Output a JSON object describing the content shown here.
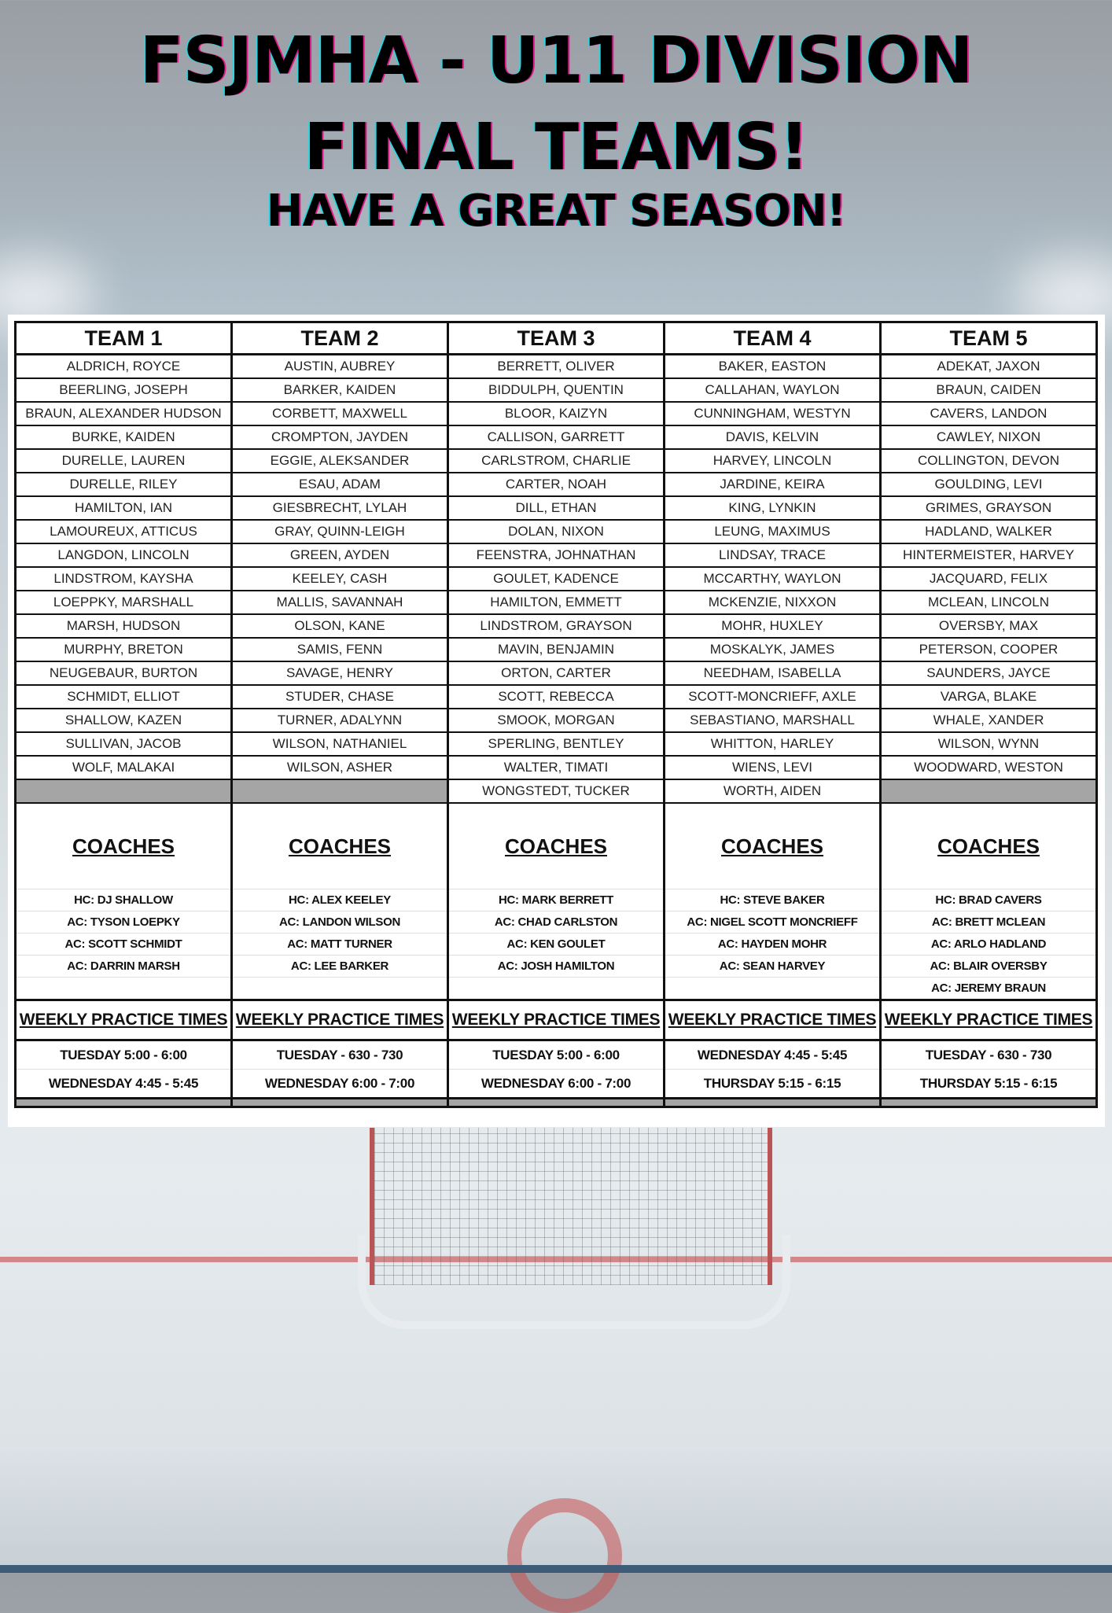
{
  "header": {
    "line1": "FSJMHA - U11 DIVISION",
    "line2": "FINAL TEAMS!",
    "line3": "HAVE A GREAT SEASON!"
  },
  "coaches_label": "COACHES",
  "practice_label": "WEEKLY PRACTICE TIMES",
  "colors": {
    "grid": "#111111",
    "empty_cell": "#a5a5a5",
    "title_shadow_magenta": "#e01d8a",
    "title_shadow_cyan": "#2ad5e0"
  },
  "teams": [
    {
      "name": "TEAM 1",
      "players": [
        "ALDRICH, ROYCE",
        "BEERLING, JOSEPH",
        "BRAUN, ALEXANDER HUDSON",
        "BURKE, KAIDEN",
        "DURELLE, LAUREN",
        "DURELLE, RILEY",
        "HAMILTON, IAN",
        "LAMOUREUX, ATTICUS",
        "LANGDON, LINCOLN",
        "LINDSTROM, KAYSHA",
        "LOEPPKY, MARSHALL",
        "MARSH, HUDSON",
        "MURPHY, BRETON",
        "NEUGEBAUR, BURTON",
        "SCHMIDT, ELLIOT",
        "SHALLOW, KAZEN",
        "SULLIVAN, JACOB",
        "WOLF, MALAKAI",
        ""
      ],
      "coaches": [
        "HC: DJ SHALLOW",
        "AC: TYSON LOEPKY",
        "AC: SCOTT SCHMIDT",
        "AC: DARRIN MARSH",
        ""
      ],
      "practice": [
        "TUESDAY 5:00 - 6:00",
        "WEDNESDAY 4:45 - 5:45"
      ]
    },
    {
      "name": "TEAM 2",
      "players": [
        "AUSTIN, AUBREY",
        "BARKER, KAIDEN",
        "CORBETT, MAXWELL",
        "CROMPTON, JAYDEN",
        "EGGIE, ALEKSANDER",
        "ESAU, ADAM",
        "GIESBRECHT, LYLAH",
        "GRAY, QUINN-LEIGH",
        "GREEN, AYDEN",
        "KEELEY, CASH",
        "MALLIS, SAVANNAH",
        "OLSON, KANE",
        "SAMIS, FENN",
        "SAVAGE, HENRY",
        "STUDER, CHASE",
        "TURNER, ADALYNN",
        "WILSON, NATHANIEL",
        "WILSON, ASHER",
        ""
      ],
      "coaches": [
        "HC: ALEX KEELEY",
        "AC: LANDON WILSON",
        "AC: MATT TURNER",
        "AC: LEE BARKER",
        ""
      ],
      "practice": [
        "TUESDAY - 630 - 730",
        "WEDNESDAY 6:00 - 7:00"
      ]
    },
    {
      "name": "TEAM 3",
      "players": [
        "BERRETT, OLIVER",
        "BIDDULPH, QUENTIN",
        "BLOOR, KAIZYN",
        "CALLISON, GARRETT",
        "CARLSTROM, CHARLIE",
        "CARTER, NOAH",
        "DILL, ETHAN",
        "DOLAN, NIXON",
        "FEENSTRA, JOHNATHAN",
        "GOULET, KADENCE",
        "HAMILTON, EMMETT",
        "LINDSTROM, GRAYSON",
        "MAVIN, BENJAMIN",
        "ORTON, CARTER",
        "SCOTT, REBECCA",
        "SMOOK, MORGAN",
        "SPERLING, BENTLEY",
        "WALTER, TIMATI",
        "WONGSTEDT, TUCKER"
      ],
      "coaches": [
        "HC: MARK BERRETT",
        "AC: CHAD CARLSTON",
        "AC: KEN GOULET",
        "AC: JOSH HAMILTON",
        ""
      ],
      "practice": [
        "TUESDAY 5:00 - 6:00",
        "WEDNESDAY 6:00 - 7:00"
      ]
    },
    {
      "name": "TEAM 4",
      "players": [
        "BAKER, EASTON",
        "CALLAHAN, WAYLON",
        "CUNNINGHAM, WESTYN",
        "DAVIS, KELVIN",
        "HARVEY, LINCOLN",
        "JARDINE, KEIRA",
        "KING, LYNKIN",
        "LEUNG, MAXIMUS",
        "LINDSAY, TRACE",
        "MCCARTHY, WAYLON",
        "MCKENZIE, NIXXON",
        "MOHR, HUXLEY",
        "MOSKALYK, JAMES",
        "NEEDHAM, ISABELLA",
        "SCOTT-MONCRIEFF, AXLE",
        "SEBASTIANO, MARSHALL",
        "WHITTON, HARLEY",
        "WIENS, LEVI",
        "WORTH, AIDEN"
      ],
      "coaches": [
        "HC: STEVE BAKER",
        "AC: NIGEL SCOTT MONCRIEFF",
        "AC: HAYDEN MOHR",
        "AC: SEAN HARVEY",
        ""
      ],
      "practice": [
        "WEDNESDAY  4:45 - 5:45",
        "THURSDAY  5:15 - 6:15"
      ]
    },
    {
      "name": "TEAM 5",
      "players": [
        "ADEKAT, JAXON",
        "BRAUN, CAIDEN",
        "CAVERS, LANDON",
        "CAWLEY, NIXON",
        "COLLINGTON, DEVON",
        "GOULDING, LEVI",
        "GRIMES, GRAYSON",
        "HADLAND, WALKER",
        "HINTERMEISTER, HARVEY",
        "JACQUARD, FELIX",
        "MCLEAN, LINCOLN",
        "OVERSBY, MAX",
        "PETERSON, COOPER",
        "SAUNDERS, JAYCE",
        "VARGA, BLAKE",
        "WHALE, XANDER",
        "WILSON, WYNN",
        "WOODWARD, WESTON",
        ""
      ],
      "coaches": [
        "HC: BRAD CAVERS",
        "AC: BRETT MCLEAN",
        "AC: ARLO HADLAND",
        "AC: BLAIR OVERSBY",
        "AC: JEREMY BRAUN"
      ],
      "practice": [
        "TUESDAY - 630 - 730",
        "THURSDAY 5:15 - 6:15"
      ]
    }
  ]
}
